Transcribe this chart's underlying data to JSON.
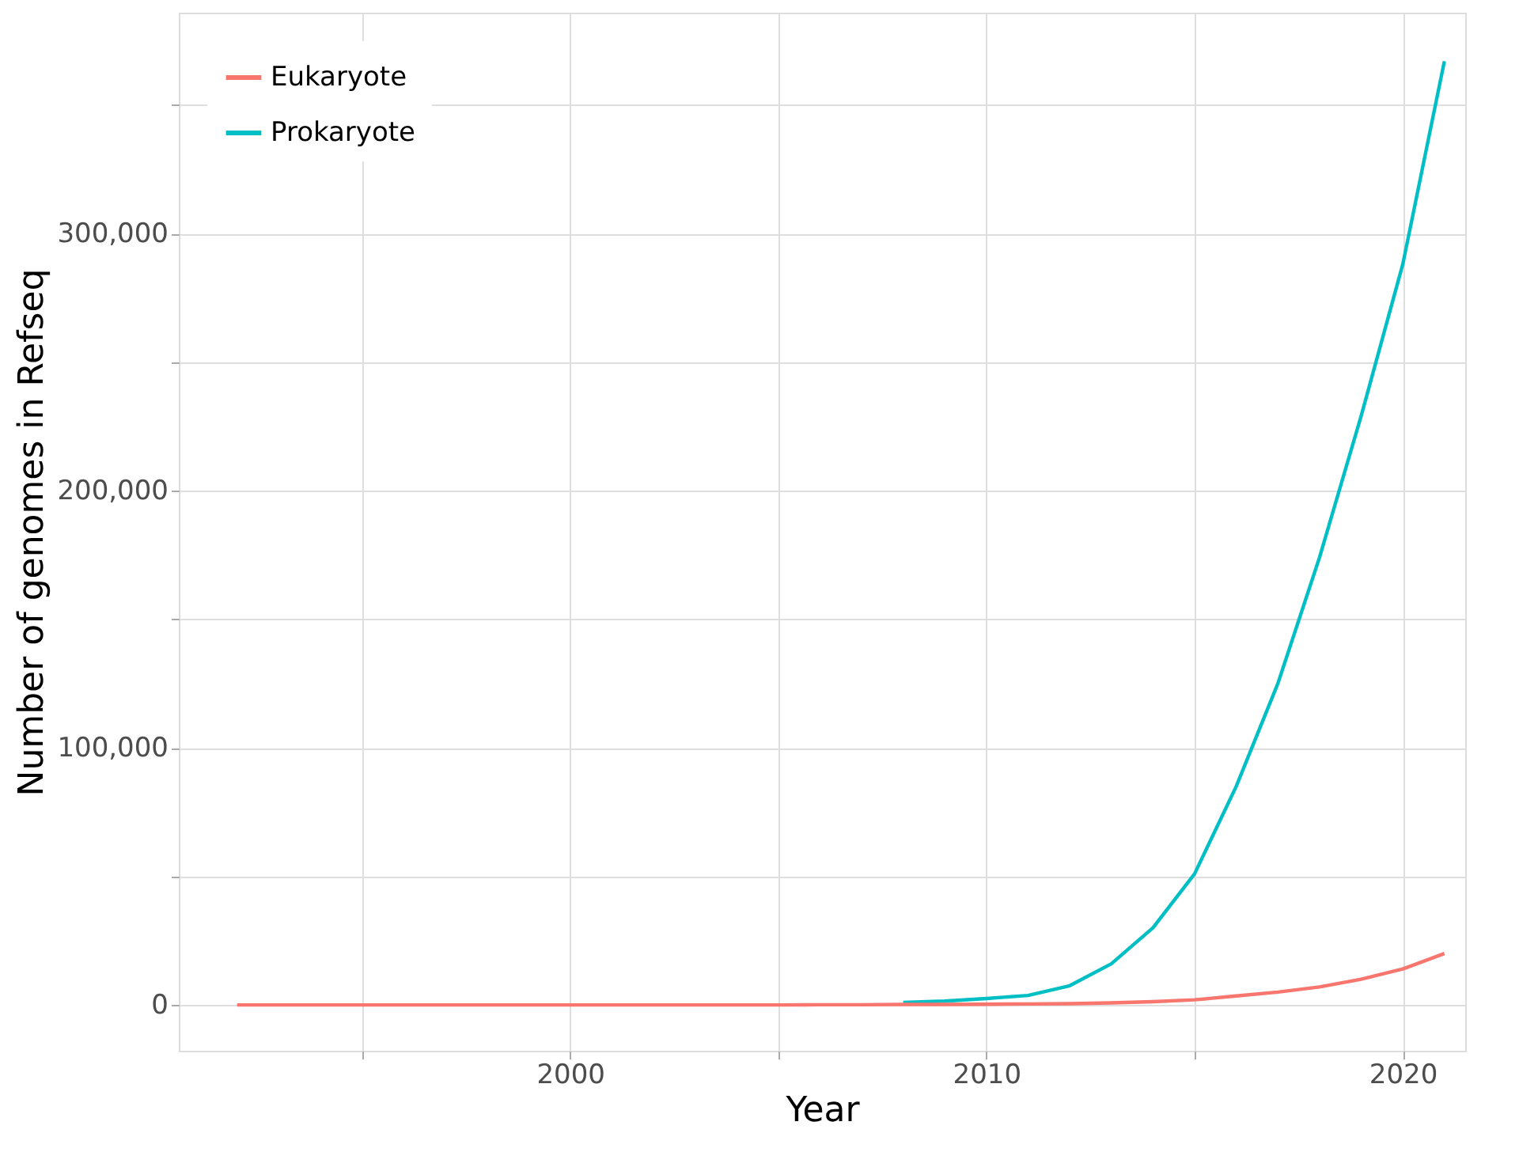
{
  "chart_data": {
    "type": "line",
    "xlabel": "Year",
    "ylabel": "Number of genomes in Refseq",
    "x": [
      1992,
      1993,
      1994,
      1995,
      1996,
      1997,
      1998,
      1999,
      2000,
      2001,
      2002,
      2003,
      2004,
      2005,
      2006,
      2007,
      2008,
      2009,
      2010,
      2011,
      2012,
      2013,
      2014,
      2015,
      2016,
      2017,
      2018,
      2019,
      2020,
      2021
    ],
    "series": [
      {
        "name": "Eukaryote",
        "color": "#f8766d",
        "values": [
          0,
          0,
          0,
          0,
          0,
          0,
          0,
          0,
          0,
          0,
          0,
          0,
          0,
          0,
          100,
          100,
          200,
          200,
          300,
          400,
          500,
          800,
          1300,
          2000,
          3500,
          5000,
          7000,
          10000,
          14000,
          20000
        ]
      },
      {
        "name": "Prokaryote",
        "color": "#00bfc4",
        "values": [
          null,
          null,
          null,
          null,
          null,
          null,
          null,
          null,
          null,
          null,
          null,
          null,
          null,
          null,
          null,
          null,
          1000,
          1500,
          2500,
          3700,
          7500,
          16000,
          30000,
          51000,
          85000,
          125000,
          174000,
          229000,
          288000,
          367000
        ]
      }
    ],
    "xlim": [
      1990.6,
      2021.5
    ],
    "ylim": [
      -17800,
      385900
    ],
    "xticks": [
      {
        "value": 1995,
        "label": null
      },
      2000,
      {
        "value": 2005,
        "label": null
      },
      2010,
      {
        "value": 2015,
        "label": null
      },
      2020
    ],
    "yticks": [
      {
        "value": 0,
        "label": "0"
      },
      {
        "value": 50000,
        "label": null
      },
      {
        "value": 100000,
        "label": "100,000"
      },
      {
        "value": 150000,
        "label": null
      },
      {
        "value": 200000,
        "label": "200,000"
      },
      {
        "value": 250000,
        "label": null
      },
      {
        "value": 300000,
        "label": "300,000"
      },
      {
        "value": 350000,
        "label": null
      }
    ],
    "grid": true,
    "legend": "top left",
    "marker": "none",
    "line_style": "solid"
  }
}
